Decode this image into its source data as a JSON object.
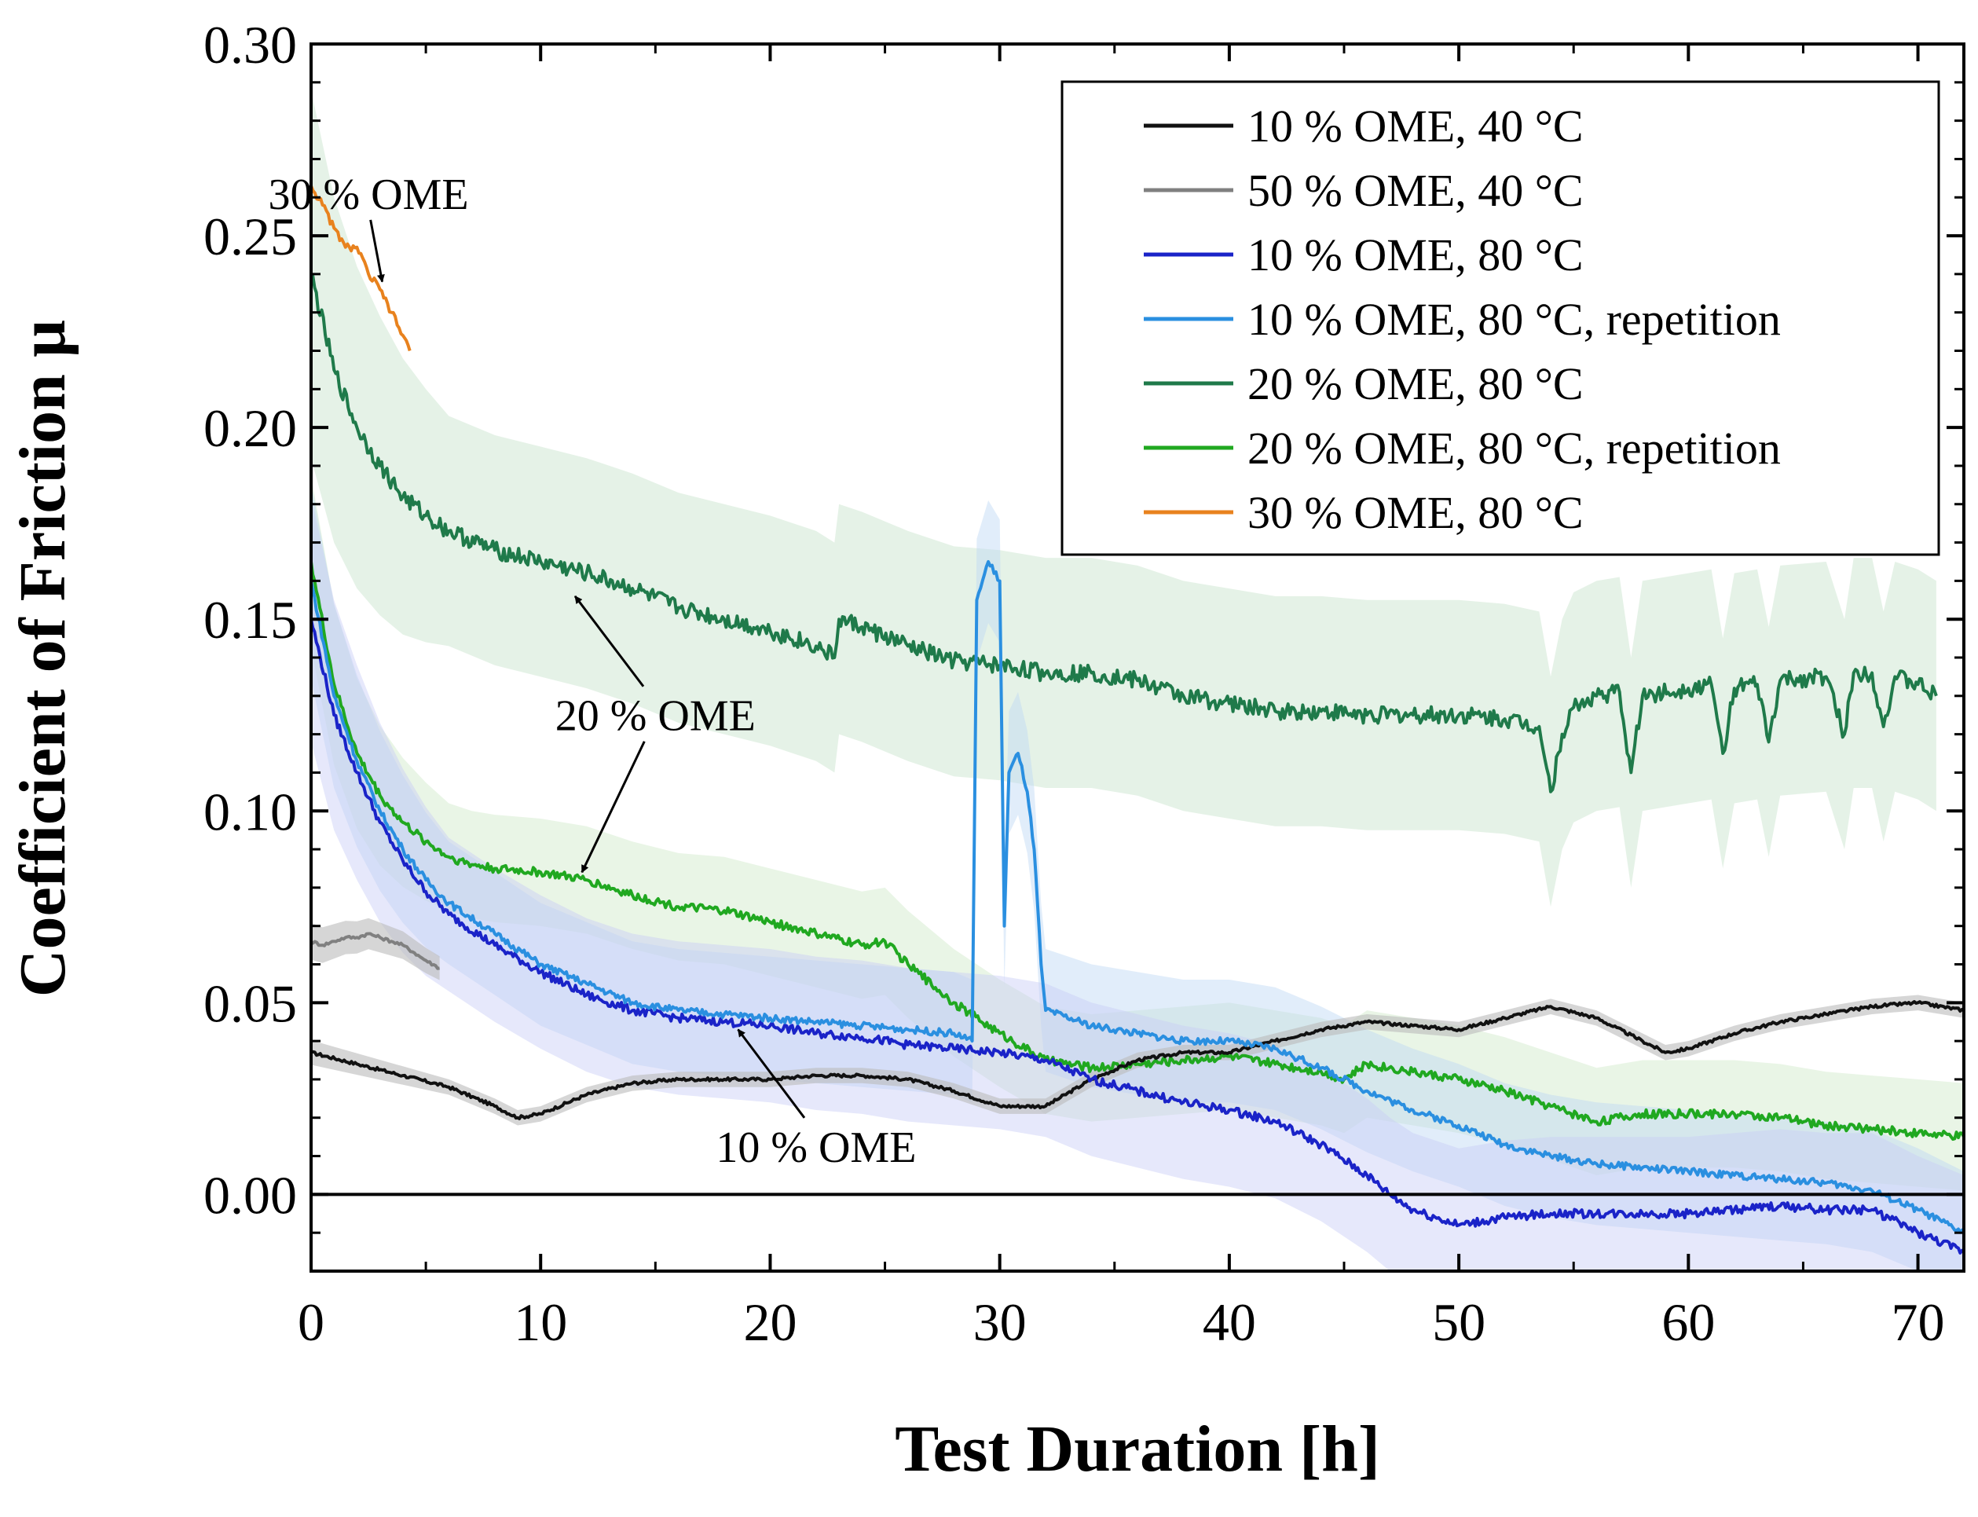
{
  "chart_data": {
    "type": "line",
    "xlabel": "Test Duration [h]",
    "ylabel": "Coefficient of Friction µ",
    "xlim": [
      0,
      72
    ],
    "ylim": [
      -0.02,
      0.3
    ],
    "xticks": [
      0,
      10,
      20,
      30,
      40,
      50,
      60,
      70
    ],
    "yticks": [
      0.0,
      0.05,
      0.1,
      0.15,
      0.2,
      0.25,
      0.3
    ],
    "ytick_labels": [
      "0.00",
      "0.05",
      "0.10",
      "0.15",
      "0.20",
      "0.25",
      "0.30"
    ],
    "xtick_labels": [
      "0",
      "10",
      "20",
      "30",
      "40",
      "50",
      "60",
      "70"
    ],
    "legend_position": "top-right",
    "grid": false,
    "reference_line_y": 0,
    "series": [
      {
        "name": "10 % OME, 40 °C",
        "color": "#111111",
        "x": [
          0,
          2,
          4,
          6,
          8,
          9,
          10,
          12,
          14,
          16,
          18,
          20,
          22,
          24,
          26,
          28,
          30,
          32,
          34,
          36,
          38,
          40,
          42,
          44,
          46,
          48,
          50,
          52,
          54,
          56,
          58,
          59,
          60,
          62,
          64,
          66,
          68,
          70,
          72
        ],
        "y": [
          0.037,
          0.034,
          0.031,
          0.028,
          0.023,
          0.02,
          0.021,
          0.026,
          0.029,
          0.03,
          0.03,
          0.03,
          0.031,
          0.031,
          0.03,
          0.027,
          0.023,
          0.023,
          0.03,
          0.035,
          0.037,
          0.037,
          0.04,
          0.043,
          0.045,
          0.044,
          0.043,
          0.046,
          0.049,
          0.046,
          0.04,
          0.037,
          0.038,
          0.042,
          0.045,
          0.047,
          0.049,
          0.05,
          0.048
        ]
      },
      {
        "name": "50 % OME, 40 °C",
        "color": "#808080",
        "x": [
          0,
          0.5,
          1,
          1.5,
          2,
          2.5,
          3,
          3.5,
          4,
          4.5,
          5,
          5.6
        ],
        "y": [
          0.066,
          0.065,
          0.066,
          0.067,
          0.067,
          0.068,
          0.067,
          0.066,
          0.065,
          0.063,
          0.061,
          0.059
        ]
      },
      {
        "name": "10 % OME, 80 °C",
        "color": "#1a23c8",
        "x": [
          0,
          1,
          2,
          3,
          4,
          5,
          6,
          8,
          10,
          12,
          14,
          16,
          18,
          20,
          22,
          24,
          26,
          28,
          30,
          32,
          34,
          36,
          38,
          40,
          42,
          44,
          46,
          47,
          48,
          50,
          52,
          54,
          56,
          58,
          60,
          62,
          64,
          66,
          68,
          70,
          72
        ],
        "y": [
          0.15,
          0.125,
          0.11,
          0.097,
          0.087,
          0.079,
          0.073,
          0.065,
          0.058,
          0.052,
          0.048,
          0.046,
          0.045,
          0.044,
          0.042,
          0.041,
          0.039,
          0.038,
          0.037,
          0.035,
          0.03,
          0.027,
          0.024,
          0.022,
          0.019,
          0.013,
          0.005,
          0.0,
          -0.004,
          -0.008,
          -0.006,
          -0.005,
          -0.005,
          -0.005,
          -0.005,
          -0.004,
          -0.003,
          -0.004,
          -0.004,
          -0.01,
          -0.015
        ]
      },
      {
        "name": "10 % OME, 80 °C, repetition",
        "color": "#2a8fe0",
        "x": [
          0,
          1,
          2,
          3,
          4,
          5,
          6,
          8,
          10,
          12,
          14,
          16,
          18,
          20,
          22,
          24,
          26,
          28,
          28.8,
          29.0,
          29.5,
          30.0,
          30.2,
          30.4,
          30.8,
          31.2,
          31.5,
          31.8,
          32,
          34,
          36,
          38,
          40,
          42,
          44,
          46,
          48,
          50,
          52,
          54,
          56,
          58,
          60,
          62,
          64,
          66,
          68,
          70,
          72
        ],
        "y": [
          0.16,
          0.13,
          0.113,
          0.1,
          0.09,
          0.082,
          0.076,
          0.068,
          0.06,
          0.055,
          0.05,
          0.048,
          0.047,
          0.046,
          0.045,
          0.044,
          0.043,
          0.042,
          0.04,
          0.155,
          0.165,
          0.16,
          0.07,
          0.11,
          0.115,
          0.105,
          0.09,
          0.06,
          0.048,
          0.044,
          0.042,
          0.04,
          0.04,
          0.038,
          0.033,
          0.027,
          0.022,
          0.018,
          0.013,
          0.01,
          0.008,
          0.007,
          0.006,
          0.005,
          0.004,
          0.003,
          0.001,
          -0.004,
          -0.01
        ]
      },
      {
        "name": "20 % OME, 80 °C",
        "color": "#1f7a4a",
        "x": [
          0,
          1,
          2,
          3,
          4,
          5,
          6,
          8,
          10,
          12,
          14,
          16,
          18,
          20,
          22,
          22.8,
          23,
          24,
          26,
          28,
          30,
          32,
          34,
          36,
          38,
          40,
          42,
          44,
          46,
          48,
          50,
          52,
          53.5,
          54,
          54.5,
          55,
          56,
          57,
          57.5,
          58,
          60,
          61,
          61.5,
          62,
          63,
          63.5,
          64,
          66,
          66.8,
          67.2,
          68,
          68.5,
          69,
          70,
          70.8
        ],
        "y": [
          0.24,
          0.215,
          0.2,
          0.19,
          0.182,
          0.177,
          0.173,
          0.168,
          0.165,
          0.162,
          0.158,
          0.153,
          0.15,
          0.147,
          0.143,
          0.14,
          0.15,
          0.148,
          0.143,
          0.139,
          0.138,
          0.136,
          0.136,
          0.134,
          0.13,
          0.128,
          0.126,
          0.126,
          0.125,
          0.125,
          0.125,
          0.124,
          0.122,
          0.105,
          0.12,
          0.127,
          0.13,
          0.131,
          0.11,
          0.13,
          0.132,
          0.133,
          0.115,
          0.132,
          0.133,
          0.118,
          0.134,
          0.135,
          0.12,
          0.136,
          0.136,
          0.122,
          0.135,
          0.133,
          0.13
        ]
      },
      {
        "name": "20 % OME, 80 °C, repetition",
        "color": "#20a820",
        "x": [
          0,
          1,
          2,
          3,
          4,
          5,
          6,
          7,
          8,
          10,
          12,
          14,
          16,
          18,
          20,
          22,
          24,
          25,
          26,
          28,
          30,
          32,
          34,
          36,
          38,
          40,
          42,
          44,
          45,
          46,
          48,
          50,
          52,
          54,
          56,
          58,
          60,
          62,
          64,
          66,
          68,
          70,
          72
        ],
        "y": [
          0.165,
          0.133,
          0.115,
          0.104,
          0.097,
          0.092,
          0.088,
          0.086,
          0.085,
          0.084,
          0.082,
          0.078,
          0.075,
          0.074,
          0.071,
          0.068,
          0.065,
          0.066,
          0.06,
          0.05,
          0.042,
          0.035,
          0.033,
          0.034,
          0.035,
          0.036,
          0.034,
          0.032,
          0.03,
          0.034,
          0.032,
          0.03,
          0.027,
          0.023,
          0.019,
          0.021,
          0.021,
          0.021,
          0.02,
          0.018,
          0.017,
          0.016,
          0.015
        ]
      },
      {
        "name": "30 % OME, 80 °C",
        "color": "#e8821e",
        "x": [
          0,
          0.5,
          1,
          1.5,
          2,
          2.5,
          3,
          3.5,
          4,
          4.3
        ],
        "y": [
          0.263,
          0.258,
          0.252,
          0.247,
          0.247,
          0.24,
          0.236,
          0.23,
          0.224,
          0.22
        ]
      }
    ],
    "annotations": [
      {
        "text": "30 % OME",
        "label_at": [
          2.5,
          0.257
        ],
        "arrow_to": [
          3.1,
          0.238
        ]
      },
      {
        "text": "20 % OME",
        "label_at": [
          15,
          0.121
        ],
        "arrows_to": [
          [
            11.5,
            0.156
          ],
          [
            11.8,
            0.084
          ]
        ]
      },
      {
        "text": "10 % OME",
        "label_at": [
          22,
          0.0085
        ],
        "arrow_to": [
          18.6,
          0.043
        ]
      }
    ]
  }
}
